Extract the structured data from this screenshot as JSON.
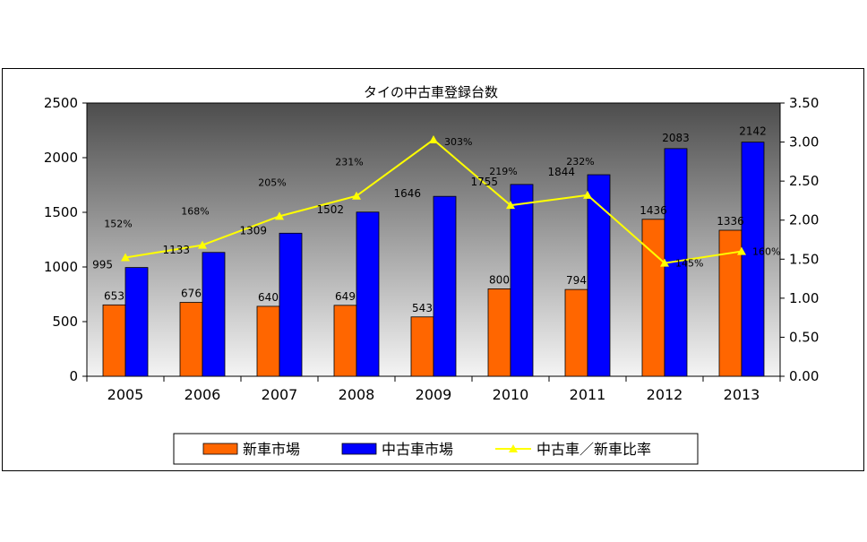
{
  "chart_data": {
    "type": "bar",
    "title": "タイの中古車登録台数",
    "categories": [
      "2005",
      "2006",
      "2007",
      "2008",
      "2009",
      "2010",
      "2011",
      "2012",
      "2013"
    ],
    "series": [
      {
        "name": "新車市場",
        "type": "bar",
        "axis": "left",
        "color": "#ff6600",
        "values": [
          653,
          676,
          640,
          649,
          543,
          800,
          794,
          1436,
          1336
        ]
      },
      {
        "name": "中古車市場",
        "type": "bar",
        "axis": "left",
        "color": "#0000ff",
        "values": [
          995,
          1133,
          1309,
          1502,
          1646,
          1755,
          1844,
          2083,
          2142
        ]
      },
      {
        "name": "中古車／新車比率",
        "type": "line",
        "axis": "right",
        "color": "#ffff00",
        "values": [
          1.52,
          1.68,
          2.05,
          2.31,
          3.03,
          2.19,
          2.32,
          1.45,
          1.6
        ],
        "labels": [
          "152%",
          "168%",
          "205%",
          "231%",
          "303%",
          "219%",
          "232%",
          "145%",
          "160%"
        ]
      }
    ],
    "y_left": {
      "min": 0,
      "max": 2500,
      "ticks": [
        "0",
        "500",
        "1000",
        "1500",
        "2000",
        "2500"
      ]
    },
    "y_right": {
      "min": 0,
      "max": 3.5,
      "ticks": [
        "0.00",
        "0.50",
        "1.00",
        "1.50",
        "2.00",
        "2.50",
        "3.00",
        "3.50"
      ]
    },
    "background": "gray gradient (dark top, light bottom)",
    "grid": false,
    "legend_position": "bottom"
  }
}
